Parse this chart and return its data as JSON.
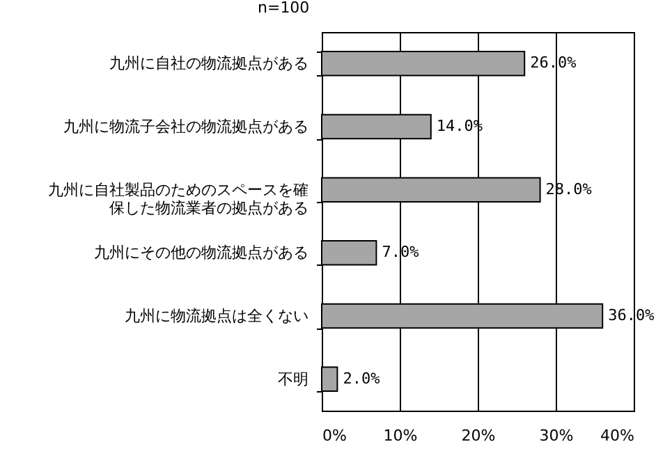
{
  "chart_data": {
    "type": "bar",
    "orientation": "horizontal",
    "title": "n=100",
    "categories": [
      "九州に自社の物流拠点がある",
      "九州に物流子会社の物流拠点がある",
      "九州に自社製品のためのスペースを確保した物流業者の拠点がある",
      "九州にその他の物流拠点がある",
      "九州に物流拠点は全くない",
      "不明"
    ],
    "values": [
      26,
      14,
      28,
      7,
      36,
      2
    ],
    "value_labels": [
      "26.0%",
      "14.0%",
      "28.0%",
      "7.0%",
      "36.0%",
      "2.0%"
    ],
    "color": "#a6a6a6",
    "xlim": [
      0,
      40
    ],
    "xticks": [
      {
        "value": 0,
        "label": "0%"
      },
      {
        "value": 10,
        "label": "10%"
      },
      {
        "value": 20,
        "label": "20%"
      },
      {
        "value": 30,
        "label": "30%"
      },
      {
        "value": 40,
        "label": "40%"
      }
    ],
    "grid": "x"
  }
}
